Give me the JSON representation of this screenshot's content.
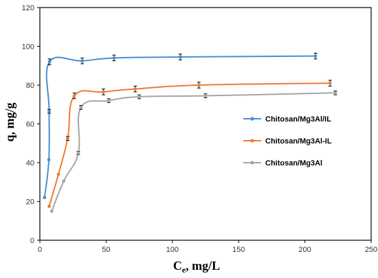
{
  "chart_data": {
    "type": "line",
    "title": "",
    "xlabel": "C",
    "xlabel_sub": "e",
    "xlabel_unit": ", mg/L",
    "ylabel": "q, mg/g",
    "xlim": [
      0,
      250
    ],
    "ylim": [
      0,
      120
    ],
    "xticks": [
      0,
      50,
      100,
      150,
      200,
      250
    ],
    "yticks": [
      0,
      20,
      40,
      60,
      80,
      100,
      120
    ],
    "grid": false,
    "legend_position": "right",
    "smooth": true,
    "error_bars": true,
    "series": [
      {
        "name": "Chitosan/Mg3Al/IL",
        "color": "#4a8fd0",
        "x": [
          3.5,
          6.8,
          7.0,
          7.3,
          32,
          56,
          106,
          208
        ],
        "y": [
          22,
          41.5,
          66.5,
          92,
          92.5,
          94,
          94.5,
          95
        ],
        "err": [
          0,
          0,
          1,
          1.5,
          1.5,
          1.5,
          1.5,
          1.5
        ]
      },
      {
        "name": "Chitosan/Mg3Al-IL",
        "color": "#ed7d31",
        "x": [
          7,
          14,
          21,
          26,
          48,
          72,
          120,
          219
        ],
        "y": [
          17.5,
          34,
          52.5,
          74.5,
          76.5,
          78,
          80,
          81
        ],
        "err": [
          0,
          0,
          1,
          1.5,
          1.5,
          1.5,
          1.5,
          1.5
        ]
      },
      {
        "name": "Chitosan/Mg3Al",
        "color": "#a5a5a5",
        "x": [
          9,
          18,
          29,
          31,
          52,
          75,
          125,
          223
        ],
        "y": [
          15,
          30.5,
          45,
          68.5,
          72,
          74,
          74.5,
          76
        ],
        "err": [
          0,
          0,
          0.8,
          1,
          1,
          1,
          1,
          1
        ]
      }
    ]
  }
}
